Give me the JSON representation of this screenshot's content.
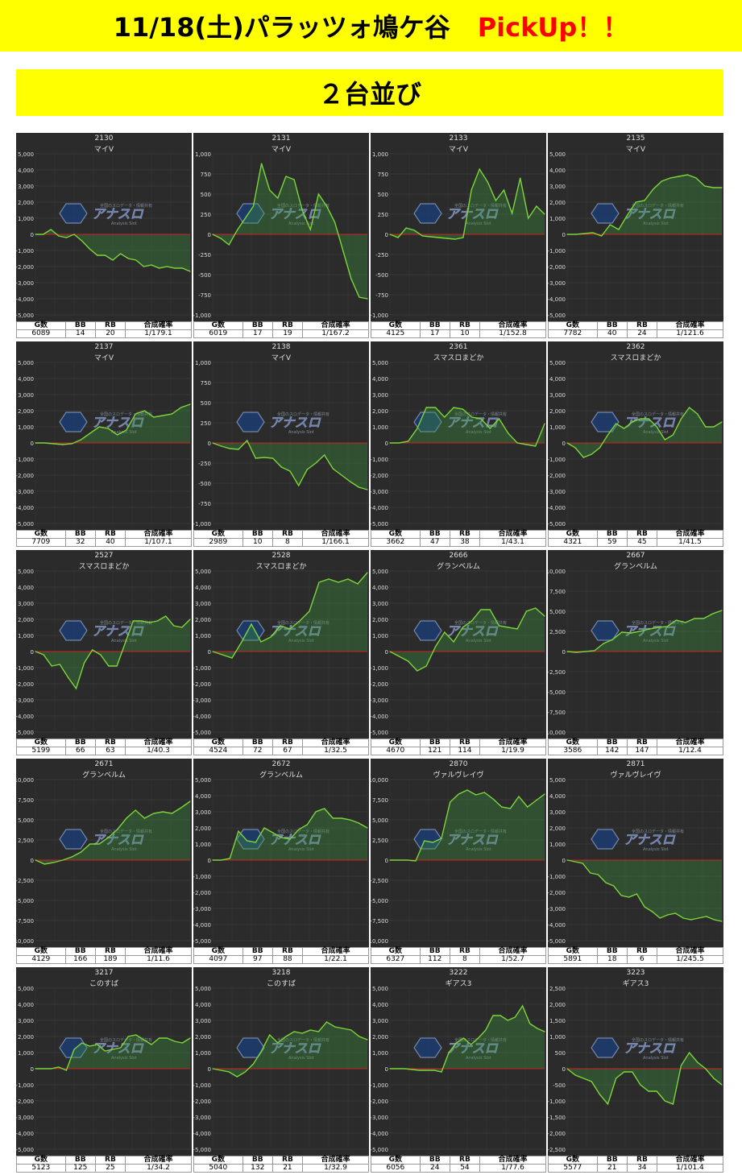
{
  "header": {
    "title": "11/18(土)パラッツォ鳩ケ谷",
    "pickup": "PickUp！！"
  },
  "subheader": {
    "title": "２台並び"
  },
  "stat_headers": [
    "G数",
    "BB",
    "RB",
    "合成確率"
  ],
  "colors": {
    "banner": "#ffff00",
    "pickup": "#ff0000",
    "panel": "#2b2b2b",
    "line": "#7cd63a",
    "zero": "#cc2222"
  },
  "watermark": {
    "text": "アナスロ",
    "sub": "Analysis Slot",
    "top": "全国のスロデータ・情報共有"
  },
  "charts": [
    {
      "number": "2130",
      "machine": "マイV",
      "g": "6089",
      "bb": "14",
      "rb": "20",
      "prob": "1/179.1"
    },
    {
      "number": "2131",
      "machine": "マイV",
      "g": "6019",
      "bb": "17",
      "rb": "19",
      "prob": "1/167.2"
    },
    {
      "number": "2133",
      "machine": "マイV",
      "g": "4125",
      "bb": "17",
      "rb": "10",
      "prob": "1/152.8"
    },
    {
      "number": "2135",
      "machine": "マイV",
      "g": "7782",
      "bb": "40",
      "rb": "24",
      "prob": "1/121.6"
    },
    {
      "number": "2137",
      "machine": "マイV",
      "g": "7709",
      "bb": "32",
      "rb": "40",
      "prob": "1/107.1"
    },
    {
      "number": "2138",
      "machine": "マイV",
      "g": "2989",
      "bb": "10",
      "rb": "8",
      "prob": "1/166.1"
    },
    {
      "number": "2361",
      "machine": "スマスロまどか",
      "g": "3662",
      "bb": "47",
      "rb": "38",
      "prob": "1/43.1"
    },
    {
      "number": "2362",
      "machine": "スマスロまどか",
      "g": "4321",
      "bb": "59",
      "rb": "45",
      "prob": "1/41.5"
    },
    {
      "number": "2527",
      "machine": "スマスロまどか",
      "g": "5199",
      "bb": "66",
      "rb": "63",
      "prob": "1/40.3"
    },
    {
      "number": "2528",
      "machine": "スマスロまどか",
      "g": "4524",
      "bb": "72",
      "rb": "67",
      "prob": "1/32.5"
    },
    {
      "number": "2666",
      "machine": "グランベルム",
      "g": "4670",
      "bb": "121",
      "rb": "114",
      "prob": "1/19.9"
    },
    {
      "number": "2667",
      "machine": "グランベルム",
      "g": "3586",
      "bb": "142",
      "rb": "147",
      "prob": "1/12.4"
    },
    {
      "number": "2671",
      "machine": "グランベルム",
      "g": "4129",
      "bb": "166",
      "rb": "189",
      "prob": "1/11.6"
    },
    {
      "number": "2672",
      "machine": "グランベルム",
      "g": "4097",
      "bb": "97",
      "rb": "88",
      "prob": "1/22.1"
    },
    {
      "number": "2870",
      "machine": "ヴァルヴレイヴ",
      "g": "6327",
      "bb": "112",
      "rb": "8",
      "prob": "1/52.7"
    },
    {
      "number": "2871",
      "machine": "ヴァルヴレイヴ",
      "g": "5891",
      "bb": "18",
      "rb": "6",
      "prob": "1/245.5"
    },
    {
      "number": "3217",
      "machine": "このすば",
      "g": "5123",
      "bb": "125",
      "rb": "25",
      "prob": "1/34.2"
    },
    {
      "number": "3218",
      "machine": "このすば",
      "g": "5040",
      "bb": "132",
      "rb": "21",
      "prob": "1/32.9"
    },
    {
      "number": "3222",
      "machine": "ギアス3",
      "g": "6056",
      "bb": "24",
      "rb": "54",
      "prob": "1/77.6"
    },
    {
      "number": "3223",
      "machine": "ギアス3",
      "g": "5577",
      "bb": "21",
      "rb": "34",
      "prob": "1/101.4"
    }
  ],
  "chart_data": [
    {
      "type": "line",
      "ylim": [
        -5000,
        5000
      ],
      "yticks": [
        "5,000",
        "4,000",
        "3,000",
        "2,000",
        "1,000",
        "0",
        "-1,000",
        "-2,000",
        "-3,000",
        "-4,000",
        "-5,000"
      ],
      "y": [
        0,
        0,
        300,
        -100,
        -200,
        0,
        -400,
        -900,
        -1300,
        -1300,
        -1600,
        -1200,
        -1500,
        -1600,
        -2000,
        -1900,
        -2100,
        -2000,
        -2100,
        -2100,
        -2300
      ]
    },
    {
      "type": "line",
      "ylim": [
        -1000,
        1000
      ],
      "yticks": [
        "1,000",
        "750",
        "500",
        "250",
        "0",
        "-250",
        "-500",
        "-750",
        "-1,000"
      ],
      "y": [
        0,
        -50,
        -130,
        50,
        200,
        350,
        880,
        550,
        450,
        720,
        680,
        300,
        60,
        500,
        350,
        150,
        -200,
        -550,
        -780,
        -800
      ]
    },
    {
      "type": "line",
      "ylim": [
        -1000,
        1000
      ],
      "yticks": [
        "1,000",
        "750",
        "500",
        "250",
        "0",
        "-250",
        "-500",
        "-750",
        "-1,000"
      ],
      "y": [
        0,
        -40,
        80,
        50,
        -20,
        -30,
        -40,
        -50,
        -60,
        -40,
        550,
        810,
        650,
        420,
        550,
        260,
        700,
        200,
        350,
        250
      ]
    },
    {
      "type": "line",
      "ylim": [
        -5000,
        5000
      ],
      "yticks": [
        "5,000",
        "4,000",
        "3,000",
        "2,000",
        "1,000",
        "0",
        "-1,000",
        "-2,000",
        "-3,000",
        "-4,000",
        "-5,000"
      ],
      "y": [
        0,
        0,
        50,
        100,
        -100,
        600,
        300,
        1200,
        2000,
        2100,
        2800,
        3300,
        3500,
        3600,
        3700,
        3500,
        3000,
        2900,
        2900
      ]
    },
    {
      "type": "line",
      "ylim": [
        -5000,
        5000
      ],
      "yticks": [
        "5,000",
        "4,000",
        "3,000",
        "2,000",
        "1,000",
        "0",
        "-1,000",
        "-2,000",
        "-3,000",
        "-4,000",
        "-5,000"
      ],
      "y": [
        0,
        0,
        -50,
        -100,
        -50,
        200,
        600,
        1000,
        900,
        500,
        800,
        1800,
        2000,
        1600,
        1700,
        1800,
        2200,
        2400
      ]
    },
    {
      "type": "line",
      "ylim": [
        -1000,
        1000
      ],
      "yticks": [
        "1,000",
        "750",
        "500",
        "250",
        "0",
        "-250",
        "-500",
        "-750",
        "-1,000"
      ],
      "y": [
        0,
        -40,
        -70,
        -80,
        30,
        -190,
        -180,
        -190,
        -300,
        -350,
        -530,
        -330,
        -250,
        -150,
        -320,
        -400,
        -480,
        -550,
        -580
      ]
    },
    {
      "type": "line",
      "ylim": [
        -5000,
        5000
      ],
      "yticks": [
        "5,000",
        "4,000",
        "3,000",
        "2,000",
        "1,000",
        "0",
        "-1,000",
        "-2,000",
        "-3,000",
        "-4,000",
        "-5,000"
      ],
      "y": [
        0,
        0,
        100,
        900,
        2200,
        2200,
        1600,
        2200,
        2100,
        1600,
        1500,
        900,
        1500,
        600,
        0,
        -100,
        -200,
        1200
      ]
    },
    {
      "type": "line",
      "ylim": [
        -5000,
        5000
      ],
      "yticks": [
        "5,000",
        "4,000",
        "3,000",
        "2,000",
        "1,000",
        "0",
        "-1,000",
        "-2,000",
        "-3,000",
        "-4,000",
        "-5,000"
      ],
      "y": [
        0,
        -300,
        -900,
        -700,
        -300,
        500,
        1200,
        900,
        1300,
        1500,
        1500,
        1000,
        200,
        500,
        1500,
        2200,
        1800,
        1000,
        1000,
        1300
      ]
    },
    {
      "type": "line",
      "ylim": [
        -5000,
        5000
      ],
      "yticks": [
        "5,000",
        "4,000",
        "3,000",
        "2,000",
        "1,000",
        "0",
        "-1,000",
        "-2,000",
        "-3,000",
        "-4,000",
        "-5,000"
      ],
      "y": [
        0,
        -200,
        -900,
        -800,
        -1600,
        -2300,
        -700,
        100,
        -200,
        -900,
        -900,
        500,
        1900,
        1900,
        1800,
        1900,
        2200,
        1600,
        1500,
        2000
      ]
    },
    {
      "type": "line",
      "ylim": [
        -5000,
        5000
      ],
      "yticks": [
        "5,000",
        "4,000",
        "3,000",
        "2,000",
        "1,000",
        "0",
        "-1,000",
        "-2,000",
        "-3,000",
        "-4,000",
        "-5,000"
      ],
      "y": [
        0,
        -200,
        -400,
        600,
        1700,
        600,
        900,
        1600,
        1400,
        1900,
        2500,
        4300,
        4500,
        4300,
        4500,
        4200,
        4900
      ]
    },
    {
      "type": "line",
      "ylim": [
        -5000,
        5000
      ],
      "yticks": [
        "5,000",
        "4,000",
        "3,000",
        "2,000",
        "1,000",
        "0",
        "-1,000",
        "-2,000",
        "-3,000",
        "-4,000",
        "-5,000"
      ],
      "y": [
        0,
        -300,
        -600,
        -1200,
        -900,
        300,
        1200,
        600,
        1500,
        1900,
        2600,
        2600,
        1600,
        1500,
        1400,
        2500,
        2700,
        2200
      ]
    },
    {
      "type": "line",
      "ylim": [
        -10000,
        10000
      ],
      "yticks": [
        "10,000",
        "7,500",
        "5,000",
        "2,500",
        "0",
        "-2,500",
        "-5,000",
        "-7,500",
        "-10,000"
      ],
      "y": [
        0,
        -100,
        0,
        100,
        1000,
        1500,
        2400,
        2300,
        2500,
        2800,
        3000,
        3100,
        3900,
        3600,
        4100,
        4100,
        4700,
        5100
      ]
    },
    {
      "type": "line",
      "ylim": [
        -10000,
        10000
      ],
      "yticks": [
        "10,000",
        "7,500",
        "5,000",
        "2,500",
        "0",
        "-2,500",
        "-5,000",
        "-7,500",
        "-10,000"
      ],
      "y": [
        0,
        -500,
        -300,
        0,
        400,
        1000,
        2000,
        2000,
        2800,
        3800,
        5200,
        6200,
        5200,
        5800,
        6000,
        5800,
        6500,
        7300
      ]
    },
    {
      "type": "line",
      "ylim": [
        -5000,
        5000
      ],
      "yticks": [
        "5,000",
        "4,000",
        "3,000",
        "2,000",
        "1,000",
        "0",
        "-1,000",
        "-2,000",
        "-3,000",
        "-4,000",
        "-5,000"
      ],
      "y": [
        0,
        0,
        100,
        1800,
        1200,
        1100,
        2000,
        1700,
        1400,
        1300,
        1900,
        2200,
        3000,
        3200,
        2600,
        2600,
        2500,
        2300,
        2000
      ]
    },
    {
      "type": "line",
      "ylim": [
        -10000,
        10000
      ],
      "yticks": [
        "10,000",
        "7,500",
        "5,000",
        "2,500",
        "0",
        "-2,500",
        "-5,000",
        "-7,500",
        "-10,000"
      ],
      "y": [
        0,
        0,
        0,
        -100,
        2400,
        2200,
        2700,
        7200,
        8200,
        8700,
        8100,
        8400,
        7600,
        6600,
        6400,
        7900,
        6600,
        7400,
        8200
      ]
    },
    {
      "type": "line",
      "ylim": [
        -5000,
        5000
      ],
      "yticks": [
        "5,000",
        "4,000",
        "3,000",
        "2,000",
        "1,000",
        "0",
        "-1,000",
        "-2,000",
        "-3,000",
        "-4,000",
        "-5,000"
      ],
      "y": [
        0,
        -100,
        -200,
        -800,
        -900,
        -1400,
        -1600,
        -2200,
        -2300,
        -2100,
        -2900,
        -3200,
        -3600,
        -3400,
        -3300,
        -3600,
        -3700,
        -3600,
        -3500,
        -3700,
        -3800
      ]
    },
    {
      "type": "line",
      "ylim": [
        -5000,
        5000
      ],
      "yticks": [
        "5,000",
        "4,000",
        "3,000",
        "2,000",
        "1,000",
        "0",
        "-1,000",
        "-2,000",
        "-3,000",
        "-4,000",
        "-5,000"
      ],
      "y": [
        0,
        0,
        0,
        100,
        -100,
        1200,
        1600,
        1400,
        1500,
        1100,
        1200,
        1300,
        2000,
        2100,
        1800,
        1500,
        1900,
        1900,
        1700,
        1600,
        1900
      ]
    },
    {
      "type": "line",
      "ylim": [
        -5000,
        5000
      ],
      "yticks": [
        "5,000",
        "4,000",
        "3,000",
        "2,000",
        "1,000",
        "0",
        "-1,000",
        "-2,000",
        "-3,000",
        "-4,000",
        "-5,000"
      ],
      "y": [
        0,
        -100,
        -200,
        -500,
        -200,
        300,
        1100,
        2100,
        1600,
        2000,
        2300,
        2200,
        2400,
        2300,
        2900,
        2600,
        2500,
        2400,
        2000,
        1800
      ]
    },
    {
      "type": "line",
      "ylim": [
        -5000,
        5000
      ],
      "yticks": [
        "5,000",
        "4,000",
        "3,000",
        "2,000",
        "1,000",
        "0",
        "-1,000",
        "-2,000",
        "-3,000",
        "-4,000",
        "-5,000"
      ],
      "y": [
        0,
        0,
        0,
        -50,
        -100,
        -100,
        -100,
        -200,
        1000,
        1600,
        1900,
        1500,
        1900,
        2400,
        3300,
        3300,
        3000,
        3200,
        3900,
        2800,
        2500,
        2300
      ]
    },
    {
      "type": "line",
      "ylim": [
        -2500,
        2500
      ],
      "yticks": [
        "2,500",
        "2,000",
        "1,500",
        "1,000",
        "500",
        "0",
        "-500",
        "-1,000",
        "-1,500",
        "-2,000",
        "-2,500"
      ],
      "y": [
        0,
        -200,
        -300,
        -400,
        -800,
        -1100,
        -300,
        -100,
        -100,
        -500,
        -700,
        -700,
        -1000,
        -1100,
        100,
        500,
        200,
        0,
        -300,
        -500
      ]
    }
  ]
}
